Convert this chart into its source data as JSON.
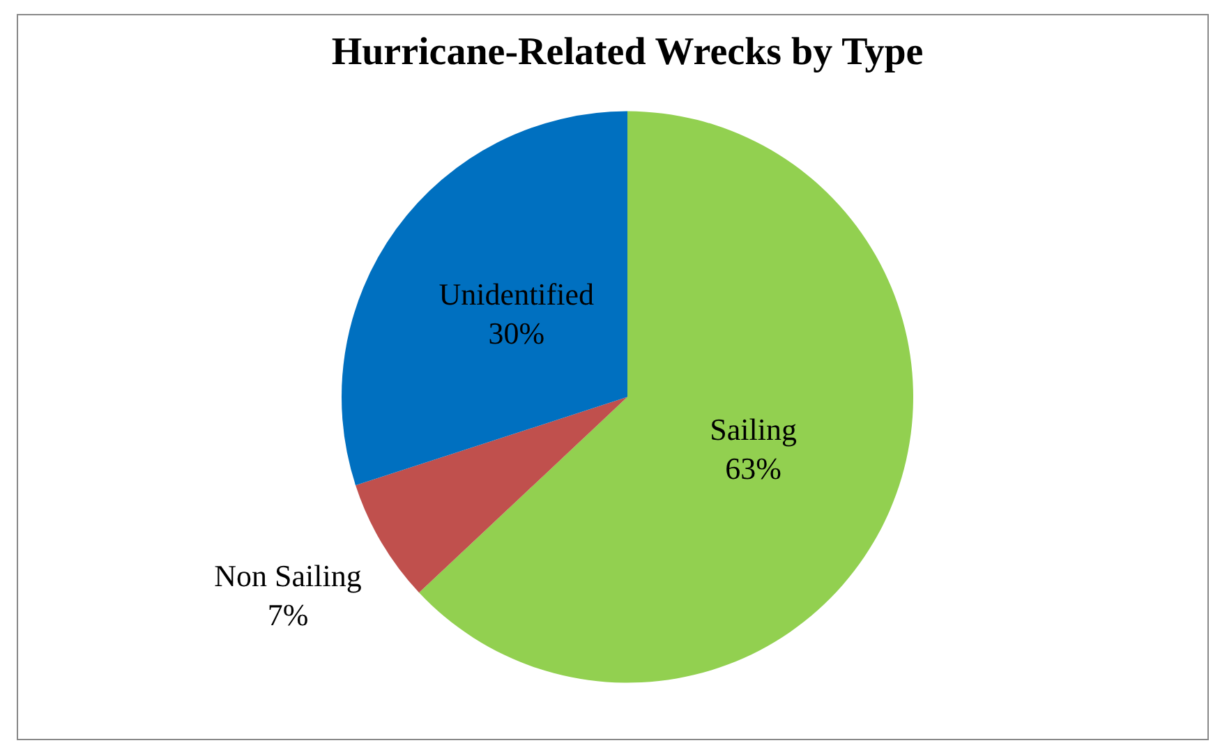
{
  "chart_data": {
    "type": "pie",
    "title": "Hurricane-Related Wrecks by Type",
    "categories": [
      "Sailing",
      "Non Sailing",
      "Unidentified"
    ],
    "values": [
      63,
      7,
      30
    ],
    "colors": [
      "#92d050",
      "#c0504d",
      "#0070c0"
    ],
    "value_labels": [
      "63%",
      "7%",
      "30%"
    ],
    "legend": false
  }
}
